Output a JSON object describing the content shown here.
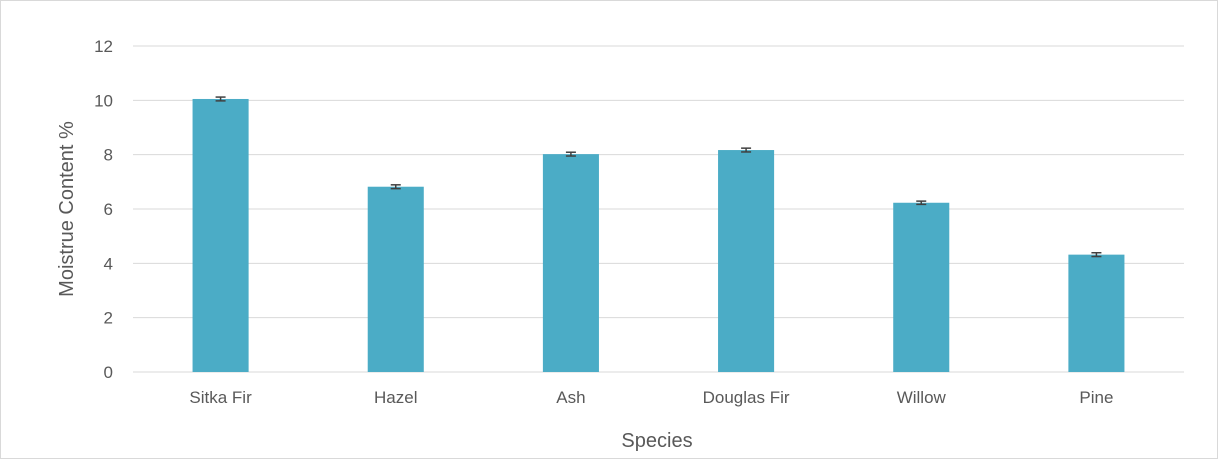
{
  "chart_data": {
    "type": "bar",
    "title": "",
    "xlabel": "Species",
    "ylabel": "Moistrue Content %",
    "categories": [
      "Sitka Fir",
      "Hazel",
      "Ash",
      "Douglas Fir",
      "Willow",
      "Pine"
    ],
    "series": [
      {
        "values": [
          10.05,
          6.82,
          8.02,
          8.17,
          6.23,
          4.32
        ],
        "error": [
          0.07,
          0.07,
          0.07,
          0.07,
          0.06,
          0.07
        ],
        "color": "#4bacc6"
      }
    ],
    "ylim": [
      0,
      12
    ],
    "yticks": [
      0,
      2,
      4,
      6,
      8,
      10,
      12
    ],
    "grid": true,
    "legend": "none",
    "colors": {
      "gridline": "#d9d9d9",
      "axis_text": "#595959",
      "error_bar": "#404040"
    }
  }
}
